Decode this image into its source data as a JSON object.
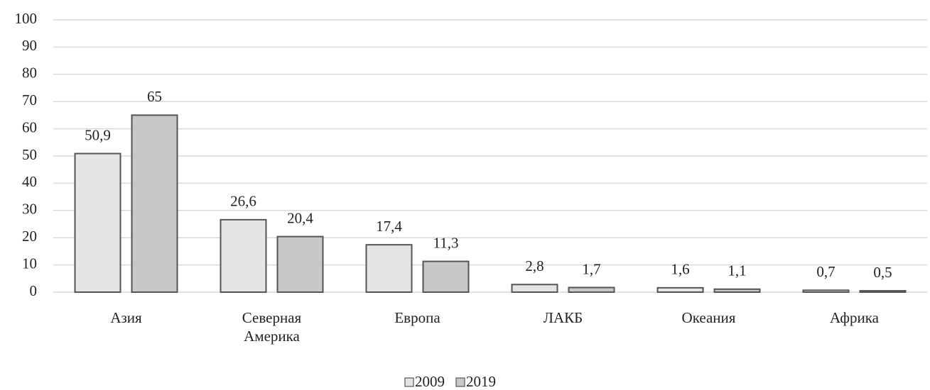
{
  "chart_data": {
    "type": "bar",
    "categories": [
      "Азия",
      "Северная Америка",
      "Европа",
      "ЛАКБ",
      "Океания",
      "Африка"
    ],
    "series": [
      {
        "name": "2009",
        "color": "#e4e4e4",
        "values": [
          50.9,
          26.6,
          17.4,
          2.8,
          1.6,
          0.7
        ],
        "value_labels": [
          "50,9",
          "26,6",
          "17,4",
          "2,8",
          "1,6",
          "0,7"
        ]
      },
      {
        "name": "2019",
        "color": "#c8c8c8",
        "values": [
          65,
          20.4,
          11.3,
          1.7,
          1.1,
          0.5
        ],
        "value_labels": [
          "65",
          "20,4",
          "11,3",
          "1,7",
          "1,1",
          "0,5"
        ]
      }
    ],
    "ylim": [
      0,
      100
    ],
    "yticks": [
      0,
      10,
      20,
      30,
      40,
      50,
      60,
      70,
      80,
      90,
      100
    ],
    "grid": true,
    "legend": "bottom"
  }
}
